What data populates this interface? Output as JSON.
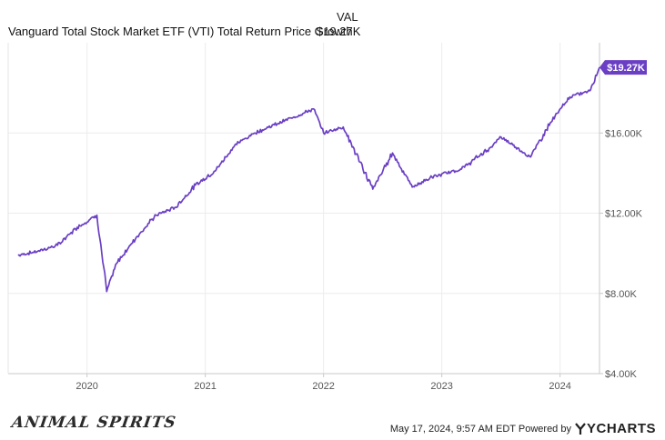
{
  "chart_data": {
    "type": "line",
    "legend_header": "VAL",
    "series": [
      {
        "name": "Vanguard Total Stock Market ETF (VTI) Total Return Price Growth",
        "last_value_label": "$19.27K",
        "color": "#6a3fc4",
        "x": [
          "2019-06",
          "2019-08",
          "2019-10",
          "2019-12",
          "2020-02",
          "2020-03",
          "2020-04",
          "2020-06",
          "2020-08",
          "2020-10",
          "2020-12",
          "2021-02",
          "2021-04",
          "2021-06",
          "2021-08",
          "2021-10",
          "2021-12",
          "2022-01",
          "2022-03",
          "2022-06",
          "2022-08",
          "2022-10",
          "2022-12",
          "2023-03",
          "2023-06",
          "2023-07",
          "2023-10",
          "2023-12",
          "2024-02",
          "2024-04",
          "2024-05"
        ],
        "values": [
          9900,
          10100,
          10400,
          11300,
          11900,
          8100,
          9500,
          10800,
          11900,
          12300,
          13400,
          14100,
          15400,
          16000,
          16400,
          16800,
          17200,
          16000,
          16300,
          13200,
          15000,
          13300,
          13800,
          14200,
          15300,
          15800,
          14800,
          16500,
          17800,
          18100,
          19270
        ]
      }
    ],
    "x_ticks": [
      "2020",
      "2021",
      "2022",
      "2023",
      "2024"
    ],
    "x_tick_dates": [
      "2020-01",
      "2021-01",
      "2022-01",
      "2023-01",
      "2024-01"
    ],
    "x_range": [
      "2019-05",
      "2024-05"
    ],
    "y_ticks": [
      {
        "value": 4000,
        "label": "$4.00K"
      },
      {
        "value": 8000,
        "label": "$8.00K"
      },
      {
        "value": 12000,
        "label": "$12.00K"
      },
      {
        "value": 16000,
        "label": "$16.00K"
      }
    ],
    "ylim": [
      4000,
      20500
    ],
    "grid": true,
    "y_axis_side": "right",
    "title": "",
    "xlabel": "",
    "ylabel": ""
  },
  "footer": {
    "logo_text": "ANIMAL SPIRITS",
    "timestamp": "May 17, 2024, 9:57 AM EDT Powered by",
    "brand": "YCHARTS"
  }
}
